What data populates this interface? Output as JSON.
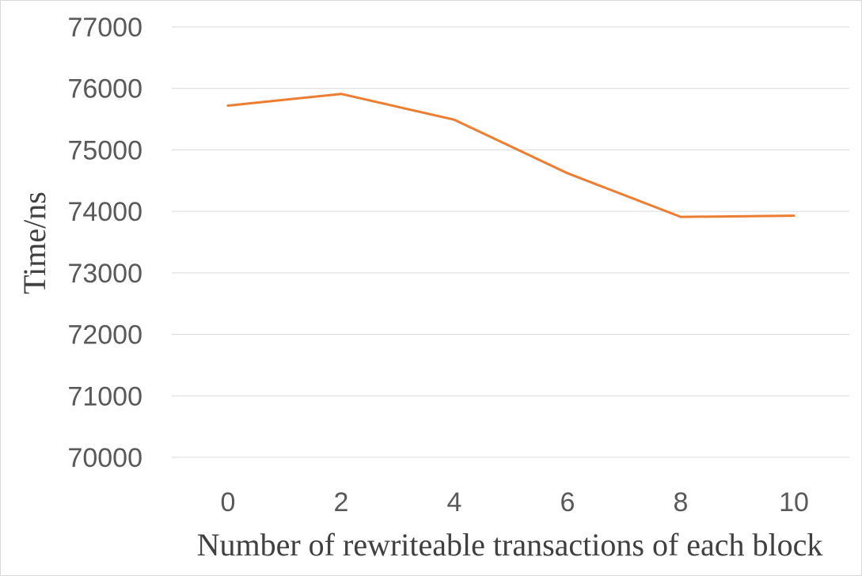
{
  "chart_data": {
    "type": "line",
    "xlabel": "Number of rewriteable transactions of each block",
    "ylabel": "Time/ns",
    "categories": [
      "0",
      "2",
      "4",
      "6",
      "8",
      "10"
    ],
    "series": [
      {
        "values": [
          75720,
          75910,
          75490,
          74620,
          73910,
          73930
        ]
      }
    ],
    "ylim": [
      70000,
      77000
    ],
    "yticks": [
      70000,
      71000,
      72000,
      73000,
      74000,
      75000,
      76000,
      77000
    ],
    "grid": "horizontal",
    "line_color": "#ed7d31",
    "grid_color": "#d9d9d9",
    "text_color": "#595959"
  }
}
